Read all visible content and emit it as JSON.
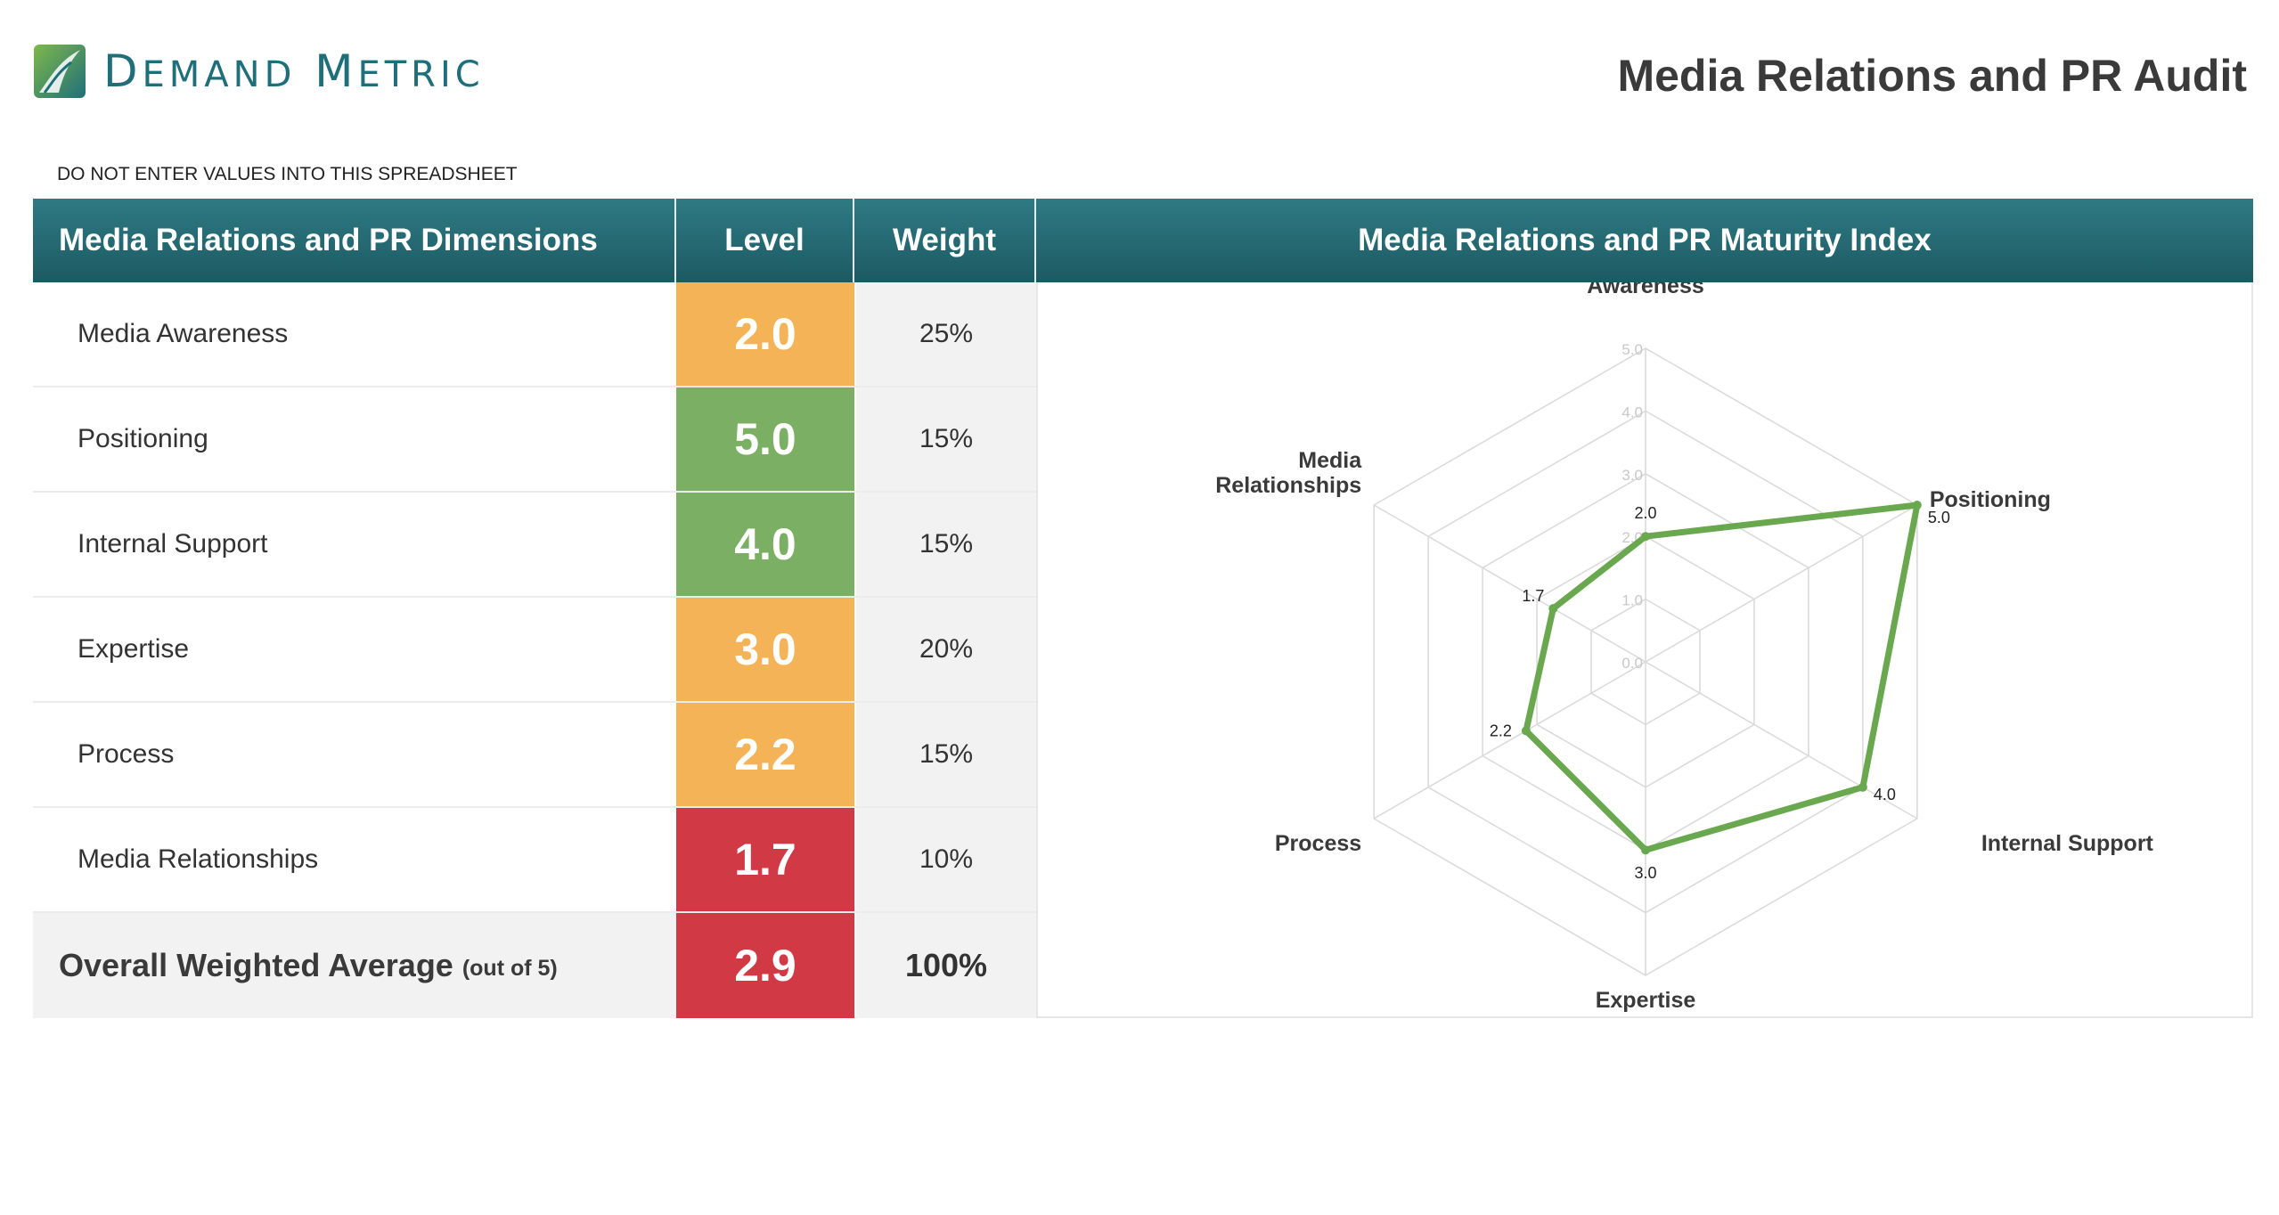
{
  "brand": {
    "logo_text": "Demand Metric",
    "primary_color": "#1f6f7a"
  },
  "page_title": "Media Relations and PR Audit",
  "warning_text": "DO NOT ENTER VALUES INTO THIS SPREADSHEET",
  "table": {
    "headers": {
      "dimensions": "Media Relations and PR Dimensions",
      "level": "Level",
      "weight": "Weight"
    },
    "rows": [
      {
        "dimension": "Media Awareness",
        "level": "2.0",
        "weight": "25%",
        "level_color": "#f5b357"
      },
      {
        "dimension": "Positioning",
        "level": "5.0",
        "weight": "15%",
        "level_color": "#7bb064"
      },
      {
        "dimension": "Internal Support",
        "level": "4.0",
        "weight": "15%",
        "level_color": "#7bb064"
      },
      {
        "dimension": "Expertise",
        "level": "3.0",
        "weight": "20%",
        "level_color": "#f5b357"
      },
      {
        "dimension": "Process",
        "level": "2.2",
        "weight": "15%",
        "level_color": "#f5b357"
      },
      {
        "dimension": "Media Relationships",
        "level": "1.7",
        "weight": "10%",
        "level_color": "#d13a44"
      }
    ],
    "total": {
      "label": "Overall Weighted Average",
      "sublabel": "(out of 5)",
      "level": "2.9",
      "weight": "100%",
      "level_color": "#d13a44"
    }
  },
  "chart_data": {
    "type": "radar",
    "title": "Media Relations and PR Maturity Index",
    "categories": [
      "Media Awareness",
      "Positioning",
      "Internal Support",
      "Expertise",
      "Process",
      "Media Relationships"
    ],
    "series": [
      {
        "name": "Level",
        "values": [
          2.0,
          5.0,
          4.0,
          3.0,
          2.2,
          1.7
        ],
        "color": "#6aa84f"
      }
    ],
    "value_labels": [
      "2.0",
      "5.0",
      "4.0",
      "3.0",
      "2.2",
      "1.7"
    ],
    "rlim": [
      0,
      5
    ],
    "ticks": [
      "0.0",
      "1.0",
      "2.0",
      "3.0",
      "4.0",
      "5.0"
    ],
    "grid_color": "#d9d9d9"
  }
}
